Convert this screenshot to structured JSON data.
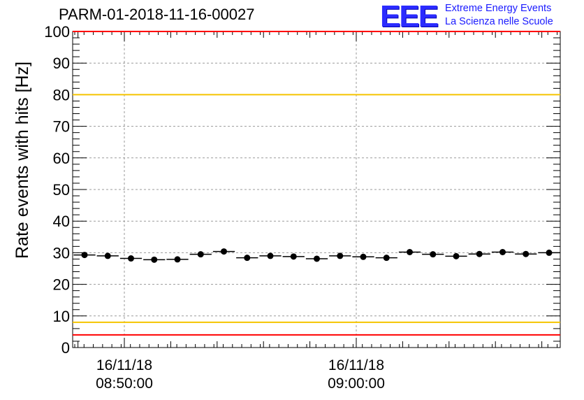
{
  "chart_data": {
    "type": "scatter",
    "title": "PARM-01-2018-11-16-00027",
    "ylabel": "Rate events with hits [Hz]",
    "xlabel": "",
    "ylim": [
      0,
      100
    ],
    "yticks": [
      0,
      10,
      20,
      30,
      40,
      50,
      60,
      70,
      80,
      90,
      100
    ],
    "xtick_labels": [
      {
        "date": "16/11/18",
        "time": "08:50:00"
      },
      {
        "date": "16/11/18",
        "time": "09:00:00"
      }
    ],
    "thresholds": [
      {
        "name": "red-upper",
        "value": 100,
        "color": "#ff0000"
      },
      {
        "name": "yellow-upper",
        "value": 80,
        "color": "#f5c400"
      },
      {
        "name": "yellow-lower",
        "value": 8,
        "color": "#f5c400"
      },
      {
        "name": "red-lower",
        "value": 4,
        "color": "#ff0000"
      }
    ],
    "series": [
      {
        "name": "rate",
        "values": [
          29.3,
          29.0,
          28.2,
          27.8,
          27.9,
          29.5,
          30.4,
          28.4,
          29.0,
          28.8,
          28.1,
          29.0,
          28.7,
          28.4,
          30.2,
          29.5,
          28.9,
          29.6,
          30.2,
          29.6,
          30.0
        ]
      }
    ],
    "grid": true
  },
  "logo": {
    "mark": "EEE",
    "line1": "Extreme Energy Events",
    "line2": "La Scienza nelle Scuole"
  },
  "colors": {
    "red": "#ff0000",
    "yellow": "#f5c400",
    "marker": "#000000",
    "logo": "#2b2bff"
  }
}
